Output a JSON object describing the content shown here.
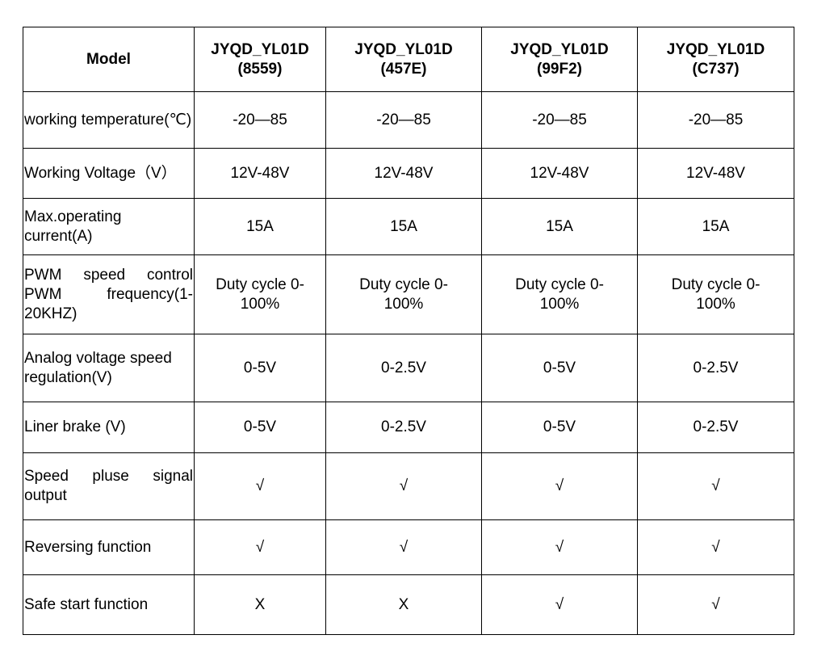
{
  "table": {
    "header": [
      "Model",
      "JYQD_YL01D (8559)",
      "JYQD_YL01D (457E)",
      "JYQD_YL01D (99F2)",
      "JYQD_YL01D (C737)"
    ],
    "rows": [
      [
        "working temperature(℃)",
        "-20—85",
        "-20—85",
        "-20—85",
        "-20—85"
      ],
      [
        "Working Voltage（V）",
        "12V-48V",
        "12V-48V",
        "12V-48V",
        "12V-48V"
      ],
      [
        "Max.operating current(A)",
        "15A",
        "15A",
        "15A",
        "15A"
      ],
      [
        "PWM speed control PWM frequency(1-20KHZ)",
        "Duty cycle 0-100%",
        "Duty cycle 0-100%",
        "Duty cycle 0-100%",
        "Duty cycle 0-100%"
      ],
      [
        "Analog voltage speed regulation(V)",
        "0-5V",
        "0-2.5V",
        "0-5V",
        "0-2.5V"
      ],
      [
        "Liner brake (V)",
        "0-5V",
        "0-2.5V",
        "0-5V",
        "0-2.5V"
      ],
      [
        "Speed pluse signal output",
        "√",
        "√",
        "√",
        "√"
      ],
      [
        "Reversing function",
        "√",
        "√",
        "√",
        "√"
      ],
      [
        "Safe start function",
        "X",
        "X",
        "√",
        "√"
      ]
    ]
  }
}
